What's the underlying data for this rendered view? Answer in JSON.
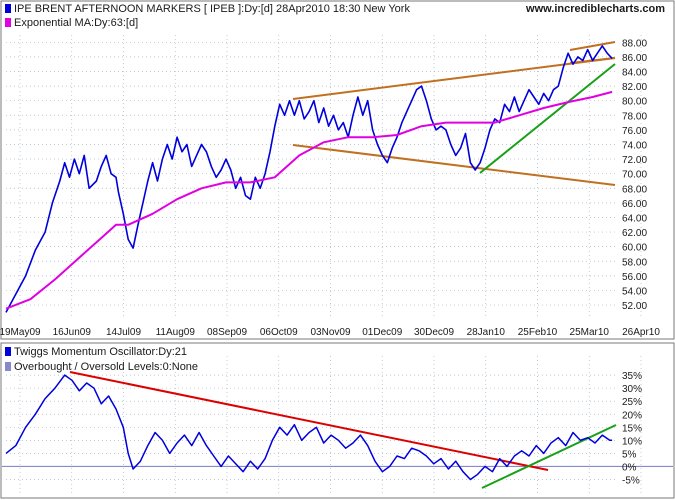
{
  "header": {
    "title": "IPE BRENT AFTERNOON MARKERS [ IPEB ]:Dy:[d]  28Apr2010 18:30 New York",
    "site": "www.incrediblecharts.com"
  },
  "colors": {
    "price": "#0000dd",
    "ema": "#e000e0",
    "channel": "#c07020",
    "trend_up": "#18a018",
    "trend_down": "#dd0000",
    "levels": "#8888cc",
    "grid": "#a8b8c8"
  },
  "chart_data": [
    {
      "type": "line",
      "panel": "price",
      "legend": [
        {
          "name": "IPE BRENT AFTERNOON MARKERS [ IPEB ]:Dy:[d]  28Apr2010 18:30 New York"
        },
        {
          "name": "Exponential MA:Dy:63:[d]"
        }
      ],
      "x_labels": [
        "19May09",
        "16Jun09",
        "14Jul09",
        "11Aug09",
        "08Sep09",
        "06Oct09",
        "03Nov09",
        "01Dec09",
        "30Dec09",
        "28Jan10",
        "25Feb10",
        "25Mar10",
        "26Apr10"
      ],
      "y_ticks": [
        "52.00",
        "54.00",
        "56.00",
        "58.00",
        "60.00",
        "62.00",
        "64.00",
        "66.00",
        "68.00",
        "70.00",
        "72.00",
        "74.00",
        "76.00",
        "78.00",
        "80.00",
        "82.00",
        "84.00",
        "86.00",
        "88.00"
      ],
      "ylim": [
        50.5,
        89
      ],
      "x_range": [
        0,
        250
      ],
      "series": [
        {
          "name": "IPE BRENT",
          "points": [
            [
              0,
              51.0
            ],
            [
              4,
              53.5
            ],
            [
              8,
              56.0
            ],
            [
              12,
              59.5
            ],
            [
              16,
              62.0
            ],
            [
              19,
              66.0
            ],
            [
              22,
              69.0
            ],
            [
              24,
              71.5
            ],
            [
              26,
              69.5
            ],
            [
              28,
              72.0
            ],
            [
              30,
              70.0
            ],
            [
              32,
              72.5
            ],
            [
              34,
              68.0
            ],
            [
              37,
              69.0
            ],
            [
              39,
              71.0
            ],
            [
              41,
              72.5
            ],
            [
              43,
              70.0
            ],
            [
              45,
              69.5
            ],
            [
              46,
              67.5
            ],
            [
              48,
              64.5
            ],
            [
              50,
              61.0
            ],
            [
              52,
              59.8
            ],
            [
              54,
              63.0
            ],
            [
              56,
              66.0
            ],
            [
              58,
              69.0
            ],
            [
              60,
              71.5
            ],
            [
              62,
              69.0
            ],
            [
              64,
              72.0
            ],
            [
              66,
              74.0
            ],
            [
              68,
              72.0
            ],
            [
              70,
              75.0
            ],
            [
              72,
              73.0
            ],
            [
              74,
              74.0
            ],
            [
              76,
              71.0
            ],
            [
              78,
              72.5
            ],
            [
              80,
              74.0
            ],
            [
              82,
              73.0
            ],
            [
              84,
              71.0
            ],
            [
              86,
              69.5
            ],
            [
              88,
              70.5
            ],
            [
              90,
              72.0
            ],
            [
              92,
              70.5
            ],
            [
              94,
              68.0
            ],
            [
              96,
              69.5
            ],
            [
              98,
              67.0
            ],
            [
              100,
              66.5
            ],
            [
              102,
              69.5
            ],
            [
              104,
              68.0
            ],
            [
              106,
              70.0
            ],
            [
              108,
              73.0
            ],
            [
              110,
              76.5
            ],
            [
              112,
              79.5
            ],
            [
              114,
              78.0
            ],
            [
              116,
              80.0
            ],
            [
              118,
              78.0
            ],
            [
              120,
              80.0
            ],
            [
              122,
              77.5
            ],
            [
              124,
              78.5
            ],
            [
              126,
              80.0
            ],
            [
              128,
              77.0
            ],
            [
              130,
              79.0
            ],
            [
              132,
              76.5
            ],
            [
              134,
              78.0
            ],
            [
              136,
              76.0
            ],
            [
              138,
              77.0
            ],
            [
              140,
              75.0
            ],
            [
              142,
              78.0
            ],
            [
              144,
              80.5
            ],
            [
              146,
              78.0
            ],
            [
              148,
              80.0
            ],
            [
              150,
              76.0
            ],
            [
              152,
              74.0
            ],
            [
              154,
              72.5
            ],
            [
              156,
              71.5
            ],
            [
              158,
              73.5
            ],
            [
              160,
              75.0
            ],
            [
              162,
              77.0
            ],
            [
              164,
              78.5
            ],
            [
              166,
              80.0
            ],
            [
              168,
              81.5
            ],
            [
              170,
              82.0
            ],
            [
              172,
              80.0
            ],
            [
              174,
              77.5
            ],
            [
              176,
              76.0
            ],
            [
              178,
              76.5
            ],
            [
              180,
              76.0
            ],
            [
              182,
              74.0
            ],
            [
              184,
              72.5
            ],
            [
              186,
              73.5
            ],
            [
              188,
              75.5
            ],
            [
              190,
              71.5
            ],
            [
              192,
              70.5
            ],
            [
              194,
              71.5
            ],
            [
              196,
              73.5
            ],
            [
              198,
              76.0
            ],
            [
              200,
              77.5
            ],
            [
              202,
              77.0
            ],
            [
              204,
              79.5
            ],
            [
              206,
              78.5
            ],
            [
              208,
              80.5
            ],
            [
              210,
              78.5
            ],
            [
              212,
              80.0
            ],
            [
              214,
              81.5
            ],
            [
              216,
              80.5
            ],
            [
              218,
              79.5
            ],
            [
              220,
              81.0
            ],
            [
              222,
              80.0
            ],
            [
              224,
              81.5
            ],
            [
              226,
              82.0
            ],
            [
              228,
              84.5
            ],
            [
              230,
              86.5
            ],
            [
              232,
              85.0
            ],
            [
              234,
              86.0
            ],
            [
              236,
              85.5
            ],
            [
              238,
              87.0
            ],
            [
              240,
              85.5
            ],
            [
              242,
              86.5
            ],
            [
              244,
              87.5
            ],
            [
              246,
              86.5
            ],
            [
              248,
              85.8
            ]
          ]
        },
        {
          "name": "Exponential MA:Dy:63:[d]",
          "points": [
            [
              0,
              51.5
            ],
            [
              10,
              52.8
            ],
            [
              20,
              55.5
            ],
            [
              30,
              58.5
            ],
            [
              40,
              61.5
            ],
            [
              45,
              63.0
            ],
            [
              50,
              63.0
            ],
            [
              60,
              64.5
            ],
            [
              70,
              66.5
            ],
            [
              80,
              68.0
            ],
            [
              90,
              68.8
            ],
            [
              100,
              68.8
            ],
            [
              110,
              69.5
            ],
            [
              120,
              72.5
            ],
            [
              130,
              74.3
            ],
            [
              140,
              75.0
            ],
            [
              150,
              75.0
            ],
            [
              160,
              75.3
            ],
            [
              170,
              76.5
            ],
            [
              180,
              77.0
            ],
            [
              190,
              77.0
            ],
            [
              200,
              77.0
            ],
            [
              210,
              78.0
            ],
            [
              220,
              79.0
            ],
            [
              230,
              79.8
            ],
            [
              240,
              80.5
            ],
            [
              248,
              81.2
            ]
          ]
        }
      ]
    },
    {
      "type": "line",
      "panel": "oscillator",
      "legend": [
        {
          "name": "Twiggs Momentum Oscillator:Dy:21"
        },
        {
          "name": "Overbought / Oversold Levels:0:None"
        }
      ],
      "y_ticks": [
        "-5%",
        "0%",
        "5%",
        "10%",
        "15%",
        "20%",
        "25%",
        "30%",
        "35%"
      ],
      "ylim": [
        -7.5,
        38.5
      ],
      "x_range": [
        0,
        250
      ],
      "zero_level": 0,
      "series": [
        {
          "name": "Twiggs Momentum Oscillator:Dy:21",
          "points": [
            [
              0,
              5
            ],
            [
              4,
              8
            ],
            [
              8,
              15
            ],
            [
              12,
              20
            ],
            [
              16,
              26
            ],
            [
              20,
              30
            ],
            [
              24,
              35
            ],
            [
              27,
              33
            ],
            [
              30,
              29
            ],
            [
              33,
              32
            ],
            [
              36,
              30
            ],
            [
              39,
              24
            ],
            [
              42,
              27
            ],
            [
              45,
              22
            ],
            [
              48,
              15
            ],
            [
              50,
              5
            ],
            [
              52,
              -1
            ],
            [
              55,
              2
            ],
            [
              58,
              8
            ],
            [
              61,
              13
            ],
            [
              64,
              10
            ],
            [
              67,
              5
            ],
            [
              70,
              9
            ],
            [
              73,
              12
            ],
            [
              76,
              8
            ],
            [
              79,
              13
            ],
            [
              82,
              8
            ],
            [
              85,
              4
            ],
            [
              88,
              0
            ],
            [
              91,
              4
            ],
            [
              94,
              1
            ],
            [
              97,
              -2
            ],
            [
              100,
              2
            ],
            [
              103,
              -1
            ],
            [
              106,
              3
            ],
            [
              109,
              10
            ],
            [
              112,
              15
            ],
            [
              115,
              12
            ],
            [
              118,
              16
            ],
            [
              121,
              10
            ],
            [
              124,
              13
            ],
            [
              127,
              15
            ],
            [
              130,
              9
            ],
            [
              133,
              12
            ],
            [
              136,
              10
            ],
            [
              139,
              7
            ],
            [
              142,
              9
            ],
            [
              145,
              12
            ],
            [
              148,
              8
            ],
            [
              151,
              2
            ],
            [
              154,
              -2
            ],
            [
              157,
              0
            ],
            [
              160,
              4
            ],
            [
              163,
              3
            ],
            [
              166,
              7
            ],
            [
              169,
              6
            ],
            [
              172,
              4
            ],
            [
              175,
              1
            ],
            [
              178,
              3
            ],
            [
              181,
              -1
            ],
            [
              184,
              2
            ],
            [
              187,
              -2
            ],
            [
              190,
              -5
            ],
            [
              193,
              -3
            ],
            [
              196,
              0
            ],
            [
              199,
              -2
            ],
            [
              202,
              3
            ],
            [
              205,
              0
            ],
            [
              208,
              4
            ],
            [
              211,
              6
            ],
            [
              214,
              4
            ],
            [
              217,
              8
            ],
            [
              220,
              5
            ],
            [
              223,
              9
            ],
            [
              226,
              11
            ],
            [
              229,
              8
            ],
            [
              232,
              13
            ],
            [
              235,
              10
            ],
            [
              238,
              11
            ],
            [
              241,
              9
            ],
            [
              244,
              12
            ],
            [
              247,
              10
            ],
            [
              248,
              10
            ]
          ]
        }
      ]
    }
  ]
}
